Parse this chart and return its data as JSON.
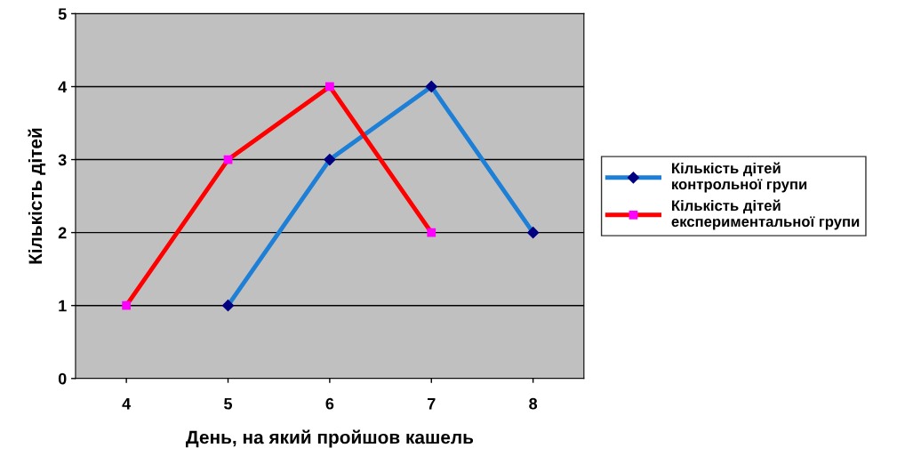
{
  "chart_data": {
    "type": "line",
    "xlabel": "День, на який пройшов кашель",
    "ylabel": "Кількість дітей",
    "categories": [
      "4",
      "5",
      "6",
      "7",
      "8"
    ],
    "series": [
      {
        "name": "Кількість дітей\nконтрольної групи",
        "color": "#1e7fd6",
        "marker": "diamond",
        "values": [
          null,
          1,
          3,
          4,
          2
        ]
      },
      {
        "name": "Кількість дітей\nекспериментальної групи",
        "color": "#ff0000",
        "marker": "square",
        "values": [
          1,
          3,
          4,
          2,
          null
        ]
      }
    ],
    "ylim": [
      0,
      5
    ],
    "yticks": [
      0,
      1,
      2,
      3,
      4,
      5
    ],
    "grid": "y",
    "legend": "right"
  }
}
